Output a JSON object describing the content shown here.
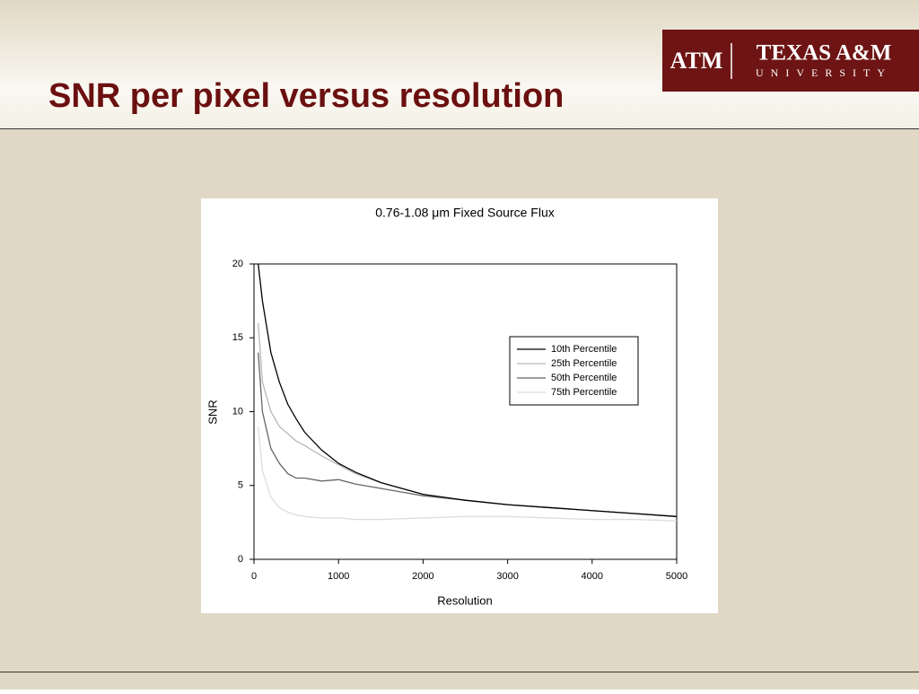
{
  "header": {
    "title": "SNR per pixel versus resolution",
    "logo": {
      "mark": "ATM",
      "wordmark": "TEXAS A&M",
      "subtitle": "UNIVERSITY"
    }
  },
  "chart_data": {
    "type": "line",
    "title": "0.76-1.08 μm Fixed Source Flux",
    "x_label": "Resolution",
    "y_label": "SNR",
    "x": [
      50,
      100,
      200,
      300,
      400,
      500,
      600,
      800,
      1000,
      1200,
      1500,
      2000,
      2500,
      3000,
      3500,
      4000,
      4500,
      5000
    ],
    "series": [
      {
        "name": "10th Percentile",
        "color": "#000000",
        "values": [
          20,
          17.5,
          14,
          12,
          10.5,
          9.5,
          8.6,
          7.4,
          6.5,
          5.9,
          5.2,
          4.4,
          4.0,
          3.7,
          3.5,
          3.3,
          3.1,
          2.9
        ]
      },
      {
        "name": "25th Percentile",
        "color": "#b8b8b8",
        "values": [
          16,
          12,
          10,
          9,
          8.5,
          8,
          7.7,
          7,
          6.4,
          5.8,
          5.2,
          4.4,
          4.0,
          3.7,
          3.5,
          3.3,
          3.1,
          2.9
        ]
      },
      {
        "name": "50th Percentile",
        "color": "#666666",
        "values": [
          14,
          10,
          7.5,
          6.5,
          5.8,
          5.5,
          5.5,
          5.3,
          5.4,
          5.1,
          4.8,
          4.3,
          4.0,
          3.7,
          3.5,
          3.3,
          3.1,
          2.9
        ]
      },
      {
        "name": "75th Percentile",
        "color": "#dddddd",
        "values": [
          9,
          6,
          4.2,
          3.5,
          3.2,
          3.0,
          2.9,
          2.8,
          2.8,
          2.7,
          2.7,
          2.8,
          2.9,
          2.9,
          2.8,
          2.7,
          2.7,
          2.6
        ]
      }
    ],
    "xlim": [
      0,
      5000
    ],
    "xticks": [
      0,
      1000,
      2000,
      3000,
      4000,
      5000
    ],
    "ylim": [
      0,
      20
    ],
    "yticks": [
      0,
      5,
      10,
      15,
      20
    ],
    "legend": "upper right"
  }
}
